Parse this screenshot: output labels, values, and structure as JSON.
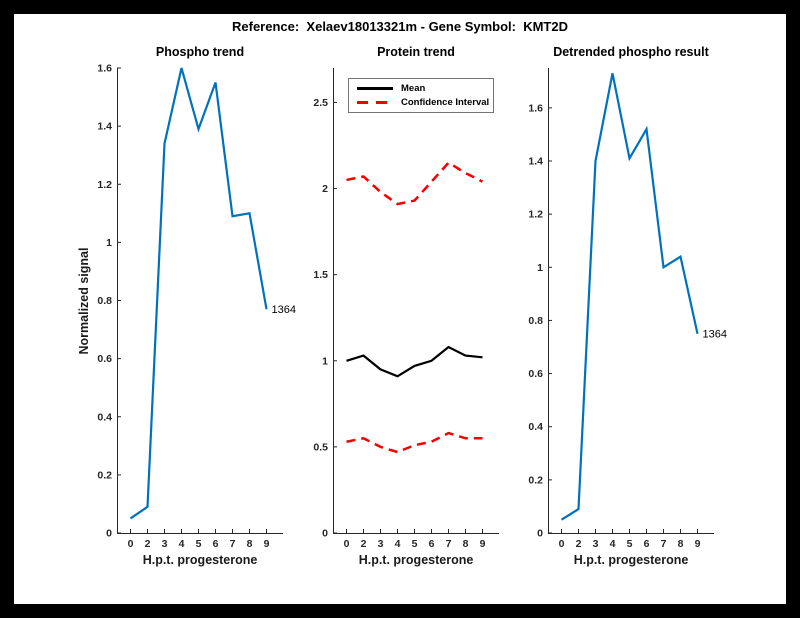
{
  "figure": {
    "title": "Reference:  Xelaev18013321m - Gene Symbol:  KMT2D",
    "background_color": "#ffffff",
    "frame_color": "#000000",
    "axis_color": "#262626"
  },
  "chart_data": [
    {
      "id": "phospho-trend",
      "type": "line",
      "title": "Phospho trend",
      "xlabel": "H.p.t. progesterone",
      "ylabel": "Normalized signal",
      "x_tick_labels": [
        "0",
        "2",
        "3",
        "4",
        "5",
        "6",
        "7",
        "8",
        "9"
      ],
      "y_ticks": [
        0,
        0.2,
        0.4,
        0.6,
        0.8,
        1,
        1.2,
        1.4,
        1.6
      ],
      "ylim": [
        0,
        1.6
      ],
      "grid": false,
      "legend": null,
      "series": [
        {
          "name": "Phospho signal",
          "color": "#0072BD",
          "style": "solid",
          "values": [
            0.05,
            0.09,
            1.34,
            1.6,
            1.39,
            1.55,
            1.09,
            1.1,
            0.77
          ]
        }
      ],
      "annotation": {
        "text": "1364"
      }
    },
    {
      "id": "protein-trend",
      "type": "line",
      "title": "Protein trend",
      "xlabel": "H.p.t. progesterone",
      "ylabel": "",
      "x_tick_labels": [
        "0",
        "2",
        "3",
        "4",
        "5",
        "6",
        "7",
        "8",
        "9"
      ],
      "y_ticks": [
        0,
        0.5,
        1,
        1.5,
        2,
        2.5
      ],
      "ylim": [
        0,
        2.7
      ],
      "grid": false,
      "legend": {
        "position": "top-left",
        "items": [
          "Mean",
          "Confidence Interval"
        ]
      },
      "series": [
        {
          "name": "Mean",
          "color": "#000000",
          "style": "solid",
          "values": [
            1.0,
            1.03,
            0.95,
            0.91,
            0.97,
            1.0,
            1.08,
            1.03,
            1.02
          ]
        },
        {
          "name": "Confidence Interval upper",
          "color": "#F40000",
          "style": "dashed",
          "values": [
            2.05,
            2.07,
            1.98,
            1.91,
            1.93,
            2.04,
            2.15,
            2.09,
            2.04
          ]
        },
        {
          "name": "Confidence Interval lower",
          "color": "#F40000",
          "style": "dashed",
          "values": [
            0.53,
            0.55,
            0.5,
            0.47,
            0.51,
            0.53,
            0.58,
            0.55,
            0.55
          ]
        }
      ],
      "annotation": null
    },
    {
      "id": "detrended-phospho-result",
      "type": "line",
      "title": "Detrended phospho result",
      "xlabel": "H.p.t. progesterone",
      "ylabel": "",
      "x_tick_labels": [
        "0",
        "2",
        "3",
        "4",
        "5",
        "6",
        "7",
        "8",
        "9"
      ],
      "y_ticks": [
        0,
        0.2,
        0.4,
        0.6,
        0.8,
        1,
        1.2,
        1.4,
        1.6
      ],
      "ylim": [
        0,
        1.75
      ],
      "grid": false,
      "legend": null,
      "series": [
        {
          "name": "Detrended phospho signal",
          "color": "#0072BD",
          "style": "solid",
          "values": [
            0.05,
            0.09,
            1.4,
            1.73,
            1.41,
            1.52,
            1.0,
            1.04,
            0.75
          ]
        }
      ],
      "annotation": {
        "text": "1364"
      }
    }
  ]
}
